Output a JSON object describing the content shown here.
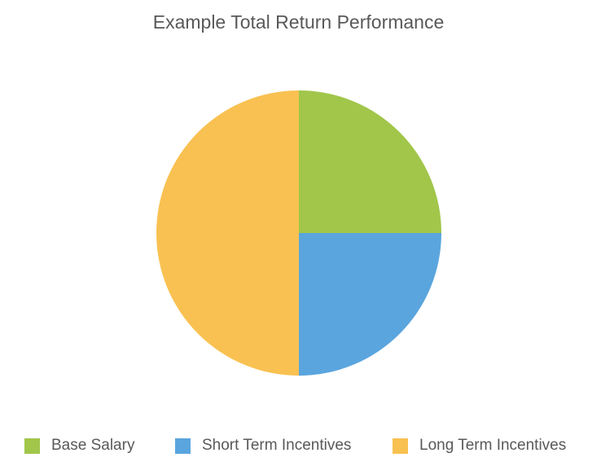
{
  "chart_data": {
    "type": "pie",
    "title": "Example Total Return Performance",
    "slices": [
      {
        "label": "Base Salary",
        "value": 25,
        "color": "#A1C64A"
      },
      {
        "label": "Short Term Incentives",
        "value": 25,
        "color": "#5AA5DE"
      },
      {
        "label": "Long Term Incentives",
        "value": 50,
        "color": "#F9C152"
      }
    ],
    "start_angle_deg": 0,
    "direction": "clockwise",
    "legend_position": "bottom"
  }
}
